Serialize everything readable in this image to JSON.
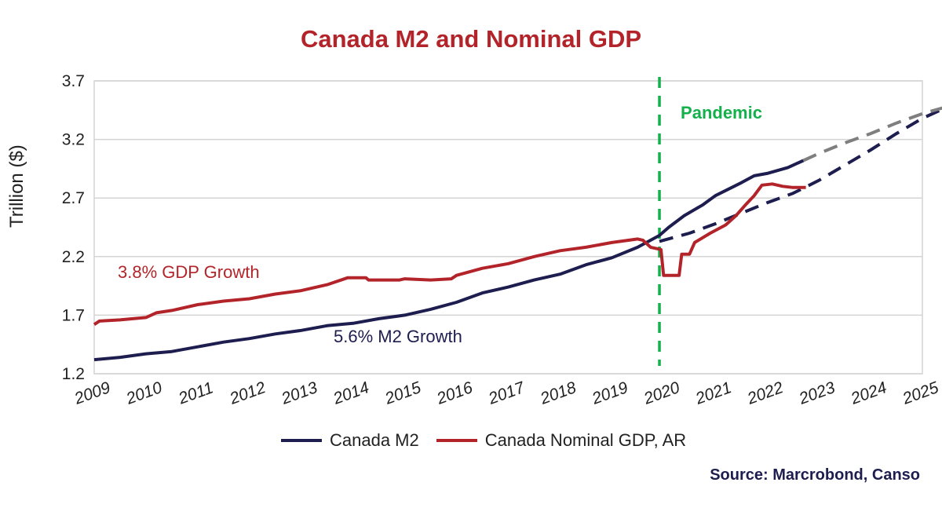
{
  "colors": {
    "m2": "#1e1d4f",
    "gdp": "#b3242a",
    "pandemic": "#14b04c",
    "projection_gray": "#7f7f7f",
    "title": "#b3242a",
    "source": "#1e1d4f",
    "grid": "#d4d4d4"
  },
  "chart_data": {
    "type": "line",
    "title": "Canada M2 and Nominal GDP",
    "xlabel": "",
    "ylabel": "Trillion ($)",
    "ylim": [
      1.2,
      3.7
    ],
    "xlim": [
      2009,
      2025
    ],
    "y_ticks": [
      "1.2",
      "1.7",
      "2.2",
      "2.7",
      "3.2",
      "3.7"
    ],
    "x_ticks": [
      "2009",
      "2010",
      "2011",
      "2012",
      "2013",
      "2014",
      "2015",
      "2016",
      "2017",
      "2018",
      "2019",
      "2020",
      "2021",
      "2022",
      "2023",
      "2024",
      "2025"
    ],
    "grid": "horizontal",
    "legend_position": "bottom",
    "series": [
      {
        "name": "Canada M2",
        "color": "#1e1d4f",
        "style": "solid",
        "points": [
          [
            2009.0,
            1.32
          ],
          [
            2009.5,
            1.34
          ],
          [
            2010.0,
            1.37
          ],
          [
            2010.5,
            1.39
          ],
          [
            2011.0,
            1.43
          ],
          [
            2011.5,
            1.47
          ],
          [
            2012.0,
            1.5
          ],
          [
            2012.5,
            1.54
          ],
          [
            2013.0,
            1.57
          ],
          [
            2013.5,
            1.61
          ],
          [
            2014.0,
            1.63
          ],
          [
            2014.5,
            1.67
          ],
          [
            2015.0,
            1.7
          ],
          [
            2015.5,
            1.75
          ],
          [
            2016.0,
            1.81
          ],
          [
            2016.5,
            1.89
          ],
          [
            2017.0,
            1.94
          ],
          [
            2017.5,
            2.0
          ],
          [
            2018.0,
            2.05
          ],
          [
            2018.5,
            2.13
          ],
          [
            2019.0,
            2.19
          ],
          [
            2019.5,
            2.28
          ],
          [
            2019.92,
            2.38
          ],
          [
            2020.1,
            2.45
          ],
          [
            2020.4,
            2.55
          ],
          [
            2020.75,
            2.64
          ],
          [
            2021.0,
            2.72
          ],
          [
            2021.5,
            2.83
          ],
          [
            2021.75,
            2.89
          ],
          [
            2022.0,
            2.91
          ],
          [
            2022.4,
            2.96
          ],
          [
            2022.7,
            3.02
          ]
        ]
      },
      {
        "name": "Canada Nominal GDP, AR",
        "color": "#b3242a",
        "style": "solid",
        "points": [
          [
            2009.0,
            1.62
          ],
          [
            2009.1,
            1.65
          ],
          [
            2009.5,
            1.66
          ],
          [
            2010.0,
            1.68
          ],
          [
            2010.2,
            1.72
          ],
          [
            2010.5,
            1.74
          ],
          [
            2011.0,
            1.79
          ],
          [
            2011.5,
            1.82
          ],
          [
            2012.0,
            1.84
          ],
          [
            2012.5,
            1.88
          ],
          [
            2013.0,
            1.91
          ],
          [
            2013.5,
            1.96
          ],
          [
            2013.9,
            2.02
          ],
          [
            2014.25,
            2.02
          ],
          [
            2014.3,
            2.0
          ],
          [
            2014.9,
            2.0
          ],
          [
            2015.0,
            2.01
          ],
          [
            2015.5,
            2.0
          ],
          [
            2015.9,
            2.01
          ],
          [
            2016.0,
            2.04
          ],
          [
            2016.5,
            2.1
          ],
          [
            2017.0,
            2.14
          ],
          [
            2017.5,
            2.2
          ],
          [
            2018.0,
            2.25
          ],
          [
            2018.5,
            2.28
          ],
          [
            2019.0,
            2.32
          ],
          [
            2019.5,
            2.35
          ],
          [
            2019.6,
            2.34
          ],
          [
            2019.75,
            2.28
          ],
          [
            2019.95,
            2.26
          ],
          [
            2020.0,
            2.04
          ],
          [
            2020.3,
            2.04
          ],
          [
            2020.35,
            2.22
          ],
          [
            2020.5,
            2.22
          ],
          [
            2020.6,
            2.32
          ],
          [
            2020.9,
            2.4
          ],
          [
            2021.2,
            2.47
          ],
          [
            2021.4,
            2.55
          ],
          [
            2021.6,
            2.65
          ],
          [
            2021.75,
            2.72
          ],
          [
            2021.9,
            2.81
          ],
          [
            2022.1,
            2.82
          ],
          [
            2022.3,
            2.8
          ],
          [
            2022.5,
            2.79
          ],
          [
            2022.75,
            2.79
          ]
        ]
      }
    ],
    "projections": [
      {
        "name": "5.6% M2 Growth",
        "color": "#1e1d4f",
        "style": "dashed",
        "points": [
          [
            2019.92,
            2.33
          ],
          [
            2020.5,
            2.4
          ],
          [
            2021.0,
            2.48
          ],
          [
            2021.5,
            2.57
          ],
          [
            2022.0,
            2.66
          ],
          [
            2022.5,
            2.74
          ],
          [
            2023.0,
            2.85
          ],
          [
            2023.5,
            2.98
          ],
          [
            2024.0,
            3.11
          ],
          [
            2024.5,
            3.25
          ],
          [
            2025.0,
            3.38
          ],
          [
            2025.5,
            3.48
          ]
        ]
      },
      {
        "name": "M2 projection",
        "color": "#7f7f7f",
        "style": "dashed",
        "points": [
          [
            2022.7,
            3.02
          ],
          [
            2023.0,
            3.08
          ],
          [
            2023.5,
            3.17
          ],
          [
            2024.0,
            3.25
          ],
          [
            2024.5,
            3.34
          ],
          [
            2025.0,
            3.42
          ],
          [
            2025.4,
            3.47
          ]
        ]
      }
    ],
    "vertical_line": {
      "x": 2019.92,
      "label": "Pandemic",
      "color": "#14b04c"
    },
    "annotations": {
      "gdp_growth": "3.8% GDP Growth",
      "m2_growth": "5.6% M2 Growth"
    }
  },
  "legend": {
    "m2_label": "Canada M2",
    "gdp_label": "Canada Nominal GDP, AR"
  },
  "source": "Source: Marcrobond, Canso"
}
